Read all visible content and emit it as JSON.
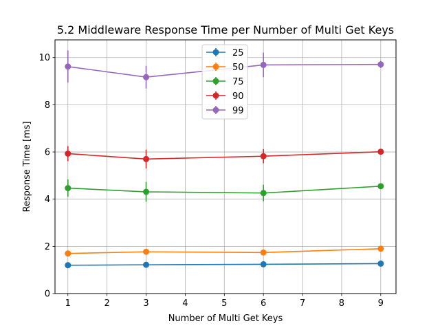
{
  "chart_data": {
    "type": "line",
    "title": "5.2 Middleware Response Time per Number of Multi Get Keys",
    "xlabel": "Number of Multi Get Keys",
    "ylabel": "Response Time [ms]",
    "x": [
      1,
      3,
      6,
      9
    ],
    "xlim": [
      0.67,
      9.39
    ],
    "ylim": [
      0,
      10.75
    ],
    "xticks": [
      1,
      2,
      3,
      4,
      5,
      6,
      7,
      8,
      9
    ],
    "yticks": [
      0,
      2,
      4,
      6,
      8,
      10
    ],
    "grid": true,
    "legend_position": "top-center",
    "series": [
      {
        "name": "25",
        "color": "#1f77b4",
        "values": [
          1.2,
          1.22,
          1.24,
          1.27
        ],
        "errors": [
          0.05,
          0.05,
          0.05,
          0.05
        ]
      },
      {
        "name": "50",
        "color": "#ff7f0e",
        "values": [
          1.7,
          1.77,
          1.74,
          1.9
        ],
        "errors": [
          0.07,
          0.07,
          0.07,
          0.08
        ]
      },
      {
        "name": "75",
        "color": "#2ca02c",
        "values": [
          4.47,
          4.31,
          4.26,
          4.55
        ],
        "errors": [
          0.37,
          0.42,
          0.35,
          0.12
        ]
      },
      {
        "name": "90",
        "color": "#d62728",
        "values": [
          5.93,
          5.7,
          5.82,
          6.01
        ],
        "errors": [
          0.32,
          0.4,
          0.3,
          0.1
        ]
      },
      {
        "name": "99",
        "color": "#9467bd",
        "values": [
          9.62,
          9.17,
          9.69,
          9.71
        ],
        "errors": [
          0.68,
          0.48,
          0.52,
          0.15
        ]
      }
    ]
  }
}
